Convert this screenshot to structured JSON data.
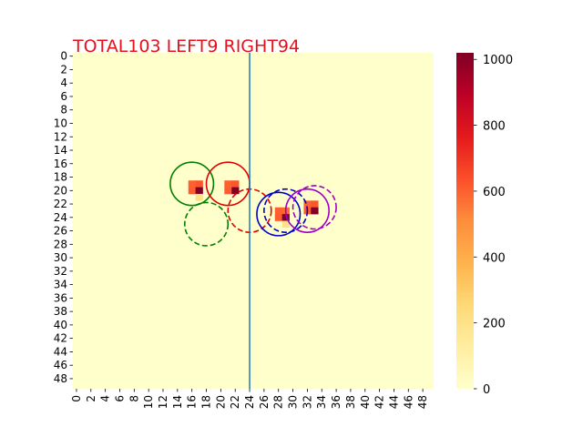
{
  "chart_data": {
    "type": "heatmap",
    "title": "TOTAL103  LEFT9 RIGHT94",
    "title_color": "#e8101a",
    "grid_size": 50,
    "x_tick_labels": [
      "0",
      "2",
      "4",
      "6",
      "8",
      "10",
      "12",
      "14",
      "16",
      "18",
      "20",
      "22",
      "24",
      "26",
      "28",
      "30",
      "32",
      "34",
      "36",
      "38",
      "40",
      "42",
      "44",
      "46",
      "48"
    ],
    "y_tick_labels": [
      "0",
      "2",
      "4",
      "6",
      "8",
      "10",
      "12",
      "14",
      "16",
      "18",
      "20",
      "22",
      "24",
      "26",
      "28",
      "30",
      "32",
      "34",
      "36",
      "38",
      "40",
      "42",
      "44",
      "46",
      "48"
    ],
    "colormap": "YlOrRd",
    "vmin": 0,
    "vmax": 1020,
    "colorbar_ticks": [
      "0",
      "200",
      "400",
      "600",
      "800",
      "1000"
    ],
    "cells": [
      {
        "row": 19,
        "col": 16,
        "value": 600
      },
      {
        "row": 19,
        "col": 17,
        "value": 620
      },
      {
        "row": 20,
        "col": 16,
        "value": 610
      },
      {
        "row": 20,
        "col": 17,
        "value": 1020
      },
      {
        "row": 21,
        "col": 17,
        "value": 200
      },
      {
        "row": 19,
        "col": 21,
        "value": 600
      },
      {
        "row": 19,
        "col": 22,
        "value": 620
      },
      {
        "row": 20,
        "col": 21,
        "value": 610
      },
      {
        "row": 20,
        "col": 22,
        "value": 1020
      },
      {
        "row": 23,
        "col": 28,
        "value": 600
      },
      {
        "row": 23,
        "col": 29,
        "value": 580
      },
      {
        "row": 24,
        "col": 28,
        "value": 610
      },
      {
        "row": 24,
        "col": 29,
        "value": 1020
      },
      {
        "row": 25,
        "col": 29,
        "value": 200
      },
      {
        "row": 22,
        "col": 32,
        "value": 600
      },
      {
        "row": 22,
        "col": 33,
        "value": 620
      },
      {
        "row": 23,
        "col": 32,
        "value": 610
      },
      {
        "row": 23,
        "col": 33,
        "value": 1020
      }
    ],
    "divider_x": 24.5,
    "divider_color": "#1f77b4",
    "circles": [
      {
        "cx": 16.5,
        "cy": 19.5,
        "r": 3,
        "color": "#008000",
        "dashed": false
      },
      {
        "cx": 18.5,
        "cy": 25.5,
        "r": 3,
        "color": "#008000",
        "dashed": true
      },
      {
        "cx": 21.5,
        "cy": 19.5,
        "r": 3,
        "color": "#e00000",
        "dashed": false
      },
      {
        "cx": 24.5,
        "cy": 23.5,
        "r": 3,
        "color": "#e00000",
        "dashed": true
      },
      {
        "cx": 28.5,
        "cy": 24,
        "r": 3,
        "color": "#0000cc",
        "dashed": false
      },
      {
        "cx": 29.5,
        "cy": 23.5,
        "r": 3,
        "color": "#0000cc",
        "dashed": true
      },
      {
        "cx": 32.5,
        "cy": 23.5,
        "r": 3,
        "color": "#a000c8",
        "dashed": false
      },
      {
        "cx": 33.5,
        "cy": 23,
        "r": 3,
        "color": "#a000c8",
        "dashed": true
      }
    ],
    "grid": false,
    "legend": "none"
  }
}
